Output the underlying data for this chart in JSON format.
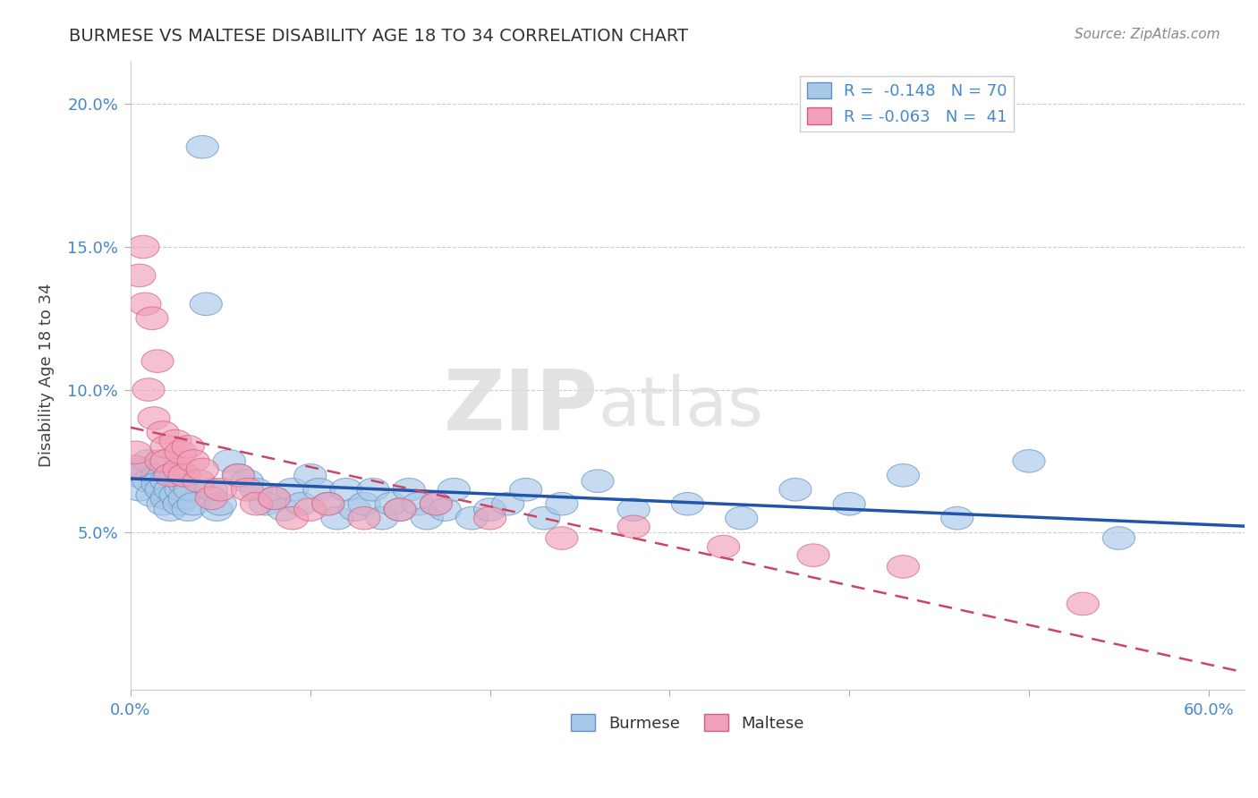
{
  "title": "BURMESE VS MALTESE DISABILITY AGE 18 TO 34 CORRELATION CHART",
  "source": "Source: ZipAtlas.com",
  "ylabel_label": "Disability Age 18 to 34",
  "burmese_R": -0.148,
  "burmese_N": 70,
  "maltese_R": -0.063,
  "maltese_N": 41,
  "xlim": [
    0.0,
    0.62
  ],
  "ylim": [
    -0.005,
    0.215
  ],
  "xtick_positions": [
    0.0,
    0.1,
    0.2,
    0.3,
    0.4,
    0.5,
    0.6
  ],
  "xtick_labels": [
    "0.0%",
    "",
    "",
    "",
    "",
    "",
    "60.0%"
  ],
  "ytick_positions": [
    0.05,
    0.1,
    0.15,
    0.2
  ],
  "ytick_labels": [
    "5.0%",
    "10.0%",
    "15.0%",
    "20.0%"
  ],
  "burmese_color": "#a8c8e8",
  "maltese_color": "#f0a0b8",
  "burmese_edge_color": "#6090c0",
  "maltese_edge_color": "#d06080",
  "burmese_line_color": "#2255aa",
  "maltese_line_color": "#cc4466",
  "background_color": "#ffffff",
  "grid_color": "#cccccc",
  "burmese_x": [
    0.003,
    0.005,
    0.008,
    0.01,
    0.01,
    0.012,
    0.015,
    0.015,
    0.017,
    0.018,
    0.02,
    0.02,
    0.022,
    0.022,
    0.025,
    0.025,
    0.027,
    0.028,
    0.03,
    0.03,
    0.032,
    0.033,
    0.035,
    0.04,
    0.042,
    0.045,
    0.048,
    0.05,
    0.055,
    0.06,
    0.065,
    0.07,
    0.075,
    0.08,
    0.085,
    0.09,
    0.095,
    0.1,
    0.105,
    0.11,
    0.115,
    0.12,
    0.125,
    0.13,
    0.135,
    0.14,
    0.145,
    0.15,
    0.155,
    0.16,
    0.165,
    0.17,
    0.175,
    0.18,
    0.19,
    0.2,
    0.21,
    0.22,
    0.23,
    0.24,
    0.26,
    0.28,
    0.31,
    0.34,
    0.37,
    0.4,
    0.43,
    0.46,
    0.5,
    0.55
  ],
  "burmese_y": [
    0.07,
    0.065,
    0.072,
    0.075,
    0.068,
    0.063,
    0.07,
    0.067,
    0.065,
    0.06,
    0.068,
    0.062,
    0.065,
    0.058,
    0.07,
    0.063,
    0.06,
    0.065,
    0.067,
    0.062,
    0.058,
    0.065,
    0.06,
    0.185,
    0.13,
    0.065,
    0.058,
    0.06,
    0.075,
    0.07,
    0.068,
    0.065,
    0.06,
    0.062,
    0.058,
    0.065,
    0.06,
    0.07,
    0.065,
    0.06,
    0.055,
    0.065,
    0.058,
    0.06,
    0.065,
    0.055,
    0.06,
    0.058,
    0.065,
    0.06,
    0.055,
    0.06,
    0.058,
    0.065,
    0.055,
    0.058,
    0.06,
    0.065,
    0.055,
    0.06,
    0.068,
    0.058,
    0.06,
    0.055,
    0.065,
    0.06,
    0.07,
    0.055,
    0.075,
    0.048
  ],
  "maltese_x": [
    0.002,
    0.003,
    0.005,
    0.007,
    0.008,
    0.01,
    0.012,
    0.013,
    0.015,
    0.017,
    0.018,
    0.02,
    0.02,
    0.022,
    0.025,
    0.027,
    0.028,
    0.03,
    0.032,
    0.035,
    0.038,
    0.04,
    0.045,
    0.05,
    0.06,
    0.065,
    0.07,
    0.08,
    0.09,
    0.1,
    0.11,
    0.13,
    0.15,
    0.17,
    0.2,
    0.24,
    0.28,
    0.33,
    0.38,
    0.43,
    0.53
  ],
  "maltese_y": [
    0.073,
    0.078,
    0.14,
    0.15,
    0.13,
    0.1,
    0.125,
    0.09,
    0.11,
    0.075,
    0.085,
    0.08,
    0.075,
    0.07,
    0.082,
    0.072,
    0.078,
    0.07,
    0.08,
    0.075,
    0.068,
    0.072,
    0.062,
    0.065,
    0.07,
    0.065,
    0.06,
    0.062,
    0.055,
    0.058,
    0.06,
    0.055,
    0.058,
    0.06,
    0.055,
    0.048,
    0.052,
    0.045,
    0.042,
    0.038,
    0.025
  ]
}
